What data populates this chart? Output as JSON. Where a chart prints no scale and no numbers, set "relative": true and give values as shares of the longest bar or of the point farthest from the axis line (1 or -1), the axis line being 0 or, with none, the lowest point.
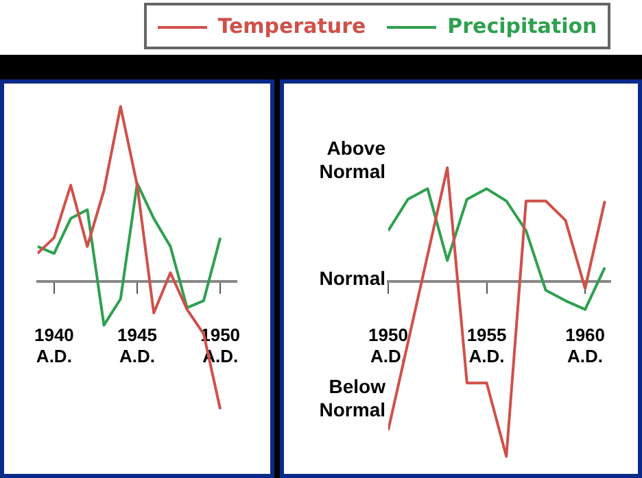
{
  "chart_data": [
    {
      "type": "line",
      "relative": true,
      "x": [
        1939,
        1940,
        1941,
        1942,
        1943,
        1944,
        1945,
        1946,
        1947,
        1948,
        1949,
        1950
      ],
      "series": [
        {
          "color": "#d0504a",
          "values": [
            0.16,
            0.25,
            0.55,
            0.2,
            0.52,
            1,
            0.55,
            -0.18,
            0.05,
            -0.16,
            -0.3,
            -0.73
          ]
        },
        {
          "color": "#2fa050",
          "values": [
            0.2,
            0.16,
            0.36,
            0.41,
            -0.25,
            -0.1,
            0.56,
            0.36,
            0.2,
            -0.15,
            -0.11,
            0.25
          ]
        }
      ],
      "xlim": [
        1939,
        1951
      ],
      "xticks": [
        {
          "value": 1940,
          "label": "1940 A.D."
        },
        {
          "value": 1945,
          "label": "1945 A.D."
        },
        {
          "value": 1950,
          "label": "1950 A.D."
        }
      ],
      "tick_labels": "x",
      "grid": false,
      "legend": false,
      "marker": "none",
      "line_style": "solid"
    },
    {
      "type": "line",
      "relative": true,
      "x": [
        1950,
        1951,
        1952,
        1953,
        1954,
        1955,
        1956,
        1957,
        1958,
        1959,
        1960,
        1961
      ],
      "series": [
        {
          "name": "Temperature",
          "color": "#d0504a",
          "values": [
            -0.85,
            -0.35,
            0.15,
            0.65,
            -0.58,
            -0.58,
            -1,
            0.46,
            0.46,
            0.35,
            -0.04,
            0.46
          ]
        },
        {
          "name": "Precipitation",
          "color": "#2fa050",
          "values": [
            0.29,
            0.47,
            0.53,
            0.12,
            0.47,
            0.53,
            0.46,
            0.29,
            -0.05,
            -0.11,
            -0.16,
            0.08
          ]
        }
      ],
      "xlim": [
        1950,
        1961.3
      ],
      "xticks": [
        {
          "value": 1950,
          "label": "1950 A.D."
        },
        {
          "value": 1955,
          "label": "1955 A.D."
        },
        {
          "value": 1960,
          "label": "1960 A.D."
        }
      ],
      "annotations": [
        "Above Normal",
        "Normal",
        "Below Normal"
      ],
      "tick_labels": "x",
      "grid": false,
      "legend": "top",
      "marker": "none",
      "line_style": "solid"
    }
  ]
}
